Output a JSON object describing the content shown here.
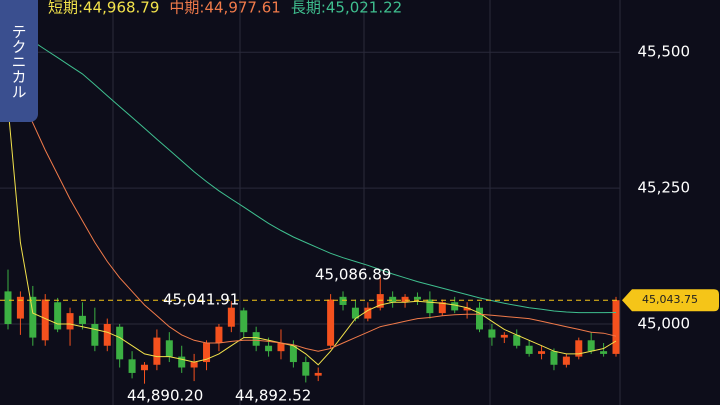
{
  "chart_data": {
    "type": "candlestick",
    "side_tab": "テクニカル",
    "ylim": [
      44851,
      45596
    ],
    "yticks": [
      {
        "value": 45000,
        "label": "45,000"
      },
      {
        "value": 45250,
        "label": "45,250"
      },
      {
        "value": 45500,
        "label": "45,500"
      }
    ],
    "grid": true,
    "up_color": "#f4511e",
    "down_color": "#3cb043",
    "last_price": {
      "value": 45043.75,
      "label": "45,043.75",
      "color": "#f5c518"
    },
    "annotations": [
      "45,086.89",
      "45,041.91",
      "44,890.20",
      "44,892.52"
    ],
    "candles": {
      "open": [
        45060,
        45010,
        45050,
        44970,
        45040,
        44990,
        45015,
        45000,
        44960,
        44995,
        44935,
        44915,
        44925,
        44970,
        44940,
        44920,
        44930,
        44965,
        44995,
        45025,
        44985,
        44960,
        44950,
        44960,
        44930,
        44905,
        44960,
        45050,
        45030,
        45010,
        45030,
        45050,
        45040,
        45050,
        45045,
        45020,
        45040,
        45025,
        45030,
        44990,
        44975,
        44980,
        44960,
        44945,
        44950,
        44925,
        44940,
        44970,
        44950,
        44945
      ],
      "high": [
        45100,
        45060,
        45070,
        45055,
        45048,
        45030,
        45040,
        45030,
        45010,
        45000,
        44950,
        44930,
        44990,
        44985,
        44960,
        44945,
        44970,
        45000,
        45041.91,
        45030,
        44995,
        44975,
        44990,
        44970,
        44940,
        44920,
        45055,
        45060,
        45045,
        45040,
        45086.89,
        45060,
        45055,
        45058,
        45060,
        45045,
        45050,
        45040,
        45040,
        45000,
        44985,
        44990,
        44970,
        44960,
        44955,
        44945,
        44975,
        44985,
        44965,
        45050
      ],
      "low": [
        44990,
        44980,
        44960,
        44960,
        44985,
        44960,
        44990,
        44950,
        44950,
        44920,
        44900,
        44890.2,
        44915,
        44930,
        44910,
        44895,
        44915,
        44950,
        44985,
        44975,
        44950,
        44940,
        44935,
        44920,
        44892.52,
        44895,
        44955,
        45025,
        45005,
        45005,
        45025,
        45030,
        45030,
        45035,
        45010,
        45015,
        45020,
        45010,
        44985,
        44960,
        44965,
        44955,
        44940,
        44935,
        44915,
        44920,
        44935,
        44945,
        44940,
        44940
      ],
      "close": [
        45000,
        45050,
        44975,
        45045,
        44990,
        45020,
        45000,
        44960,
        45000,
        44935,
        44910,
        44925,
        44975,
        44940,
        44920,
        44930,
        44965,
        44995,
        45030,
        44985,
        44960,
        44950,
        44965,
        44930,
        44905,
        44910,
        45045,
        45035,
        45010,
        45030,
        45055,
        45040,
        45050,
        45045,
        45020,
        45040,
        45025,
        45030,
        44990,
        44975,
        44980,
        44960,
        44945,
        44950,
        44925,
        44940,
        44970,
        44950,
        44945,
        45043.75
      ]
    },
    "series": [
      {
        "label": "短期:44,968.79",
        "color": "#f2e24b",
        "values": [
          45400,
          45150,
          45020,
          45010,
          45000,
          45000,
          44995,
          44990,
          44985,
          44975,
          44960,
          44945,
          44940,
          44940,
          44935,
          44930,
          44935,
          44945,
          44960,
          44975,
          44975,
          44970,
          44965,
          44960,
          44945,
          44925,
          44950,
          44980,
          45010,
          45025,
          45035,
          45040,
          45040,
          45042,
          45040,
          45038,
          45035,
          45030,
          45020,
          45005,
          44990,
          44980,
          44970,
          44960,
          44950,
          44945,
          44945,
          44950,
          44955,
          44968.79
        ]
      },
      {
        "label": "中期:44,977.61",
        "color": "#f07a4a",
        "values": [
          45480,
          45420,
          45370,
          45320,
          45275,
          45230,
          45190,
          45150,
          45115,
          45085,
          45060,
          45035,
          45015,
          44995,
          44980,
          44970,
          44965,
          44965,
          44968,
          44970,
          44970,
          44968,
          44965,
          44962,
          44955,
          44950,
          44955,
          44965,
          44975,
          44985,
          44995,
          45000,
          45005,
          45010,
          45012,
          45015,
          45017,
          45018,
          45018,
          45016,
          45014,
          45012,
          45010,
          45005,
          45000,
          44995,
          44990,
          44985,
          44983,
          44977.61
        ]
      },
      {
        "label": "長期:45,021.22",
        "color": "#3fbf8f",
        "values": [
          45550,
          45535,
          45520,
          45505,
          45490,
          45475,
          45460,
          45440,
          45420,
          45400,
          45380,
          45360,
          45340,
          45320,
          45300,
          45280,
          45262,
          45245,
          45230,
          45215,
          45200,
          45185,
          45172,
          45160,
          45150,
          45140,
          45130,
          45122,
          45115,
          45108,
          45100,
          45092,
          45085,
          45078,
          45072,
          45066,
          45060,
          45054,
          45048,
          45043,
          45038,
          45034,
          45030,
          45027,
          45024,
          45022,
          45021,
          45021,
          45021,
          45021.22
        ]
      }
    ]
  }
}
